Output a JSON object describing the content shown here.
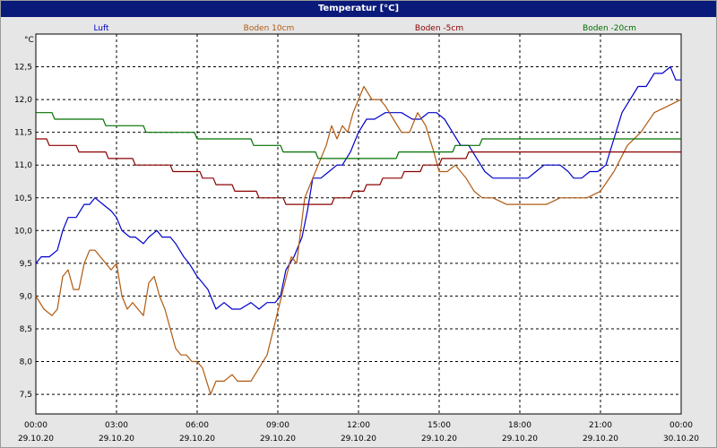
{
  "window": {
    "title": "Temperatur [°C]"
  },
  "chart_data": {
    "type": "line",
    "title": "Temperatur [°C]",
    "ylabel": "°C",
    "xlabel": "",
    "ylim": [
      7.2,
      13.0
    ],
    "y_ticks": [
      7.5,
      8.0,
      8.5,
      9.0,
      9.5,
      10.0,
      10.5,
      11.0,
      11.5,
      12.0,
      12.5
    ],
    "y_tick_labels": [
      "7,5",
      "8,0",
      "8,5",
      "9,0",
      "9,5",
      "10,0",
      "10,5",
      "11,0",
      "11,5",
      "12,0",
      "12,5"
    ],
    "xlim": [
      0,
      24
    ],
    "x_ticks": [
      0,
      3,
      6,
      9,
      12,
      15,
      18,
      21,
      24
    ],
    "x_tick_labels": [
      [
        "00:00",
        "29.10.20"
      ],
      [
        "03:00",
        "29.10.20"
      ],
      [
        "06:00",
        "29.10.20"
      ],
      [
        "09:00",
        "29.10.20"
      ],
      [
        "12:00",
        "29.10.20"
      ],
      [
        "15:00",
        "29.10.20"
      ],
      [
        "18:00",
        "29.10.20"
      ],
      [
        "21:00",
        "29.10.20"
      ],
      [
        "00:00",
        "30.10.20"
      ]
    ],
    "grid": true,
    "legend_position": "top",
    "series": [
      {
        "name": "Luft",
        "color": "#0000cc",
        "x": [
          0,
          0.2,
          0.5,
          0.8,
          1.0,
          1.2,
          1.5,
          1.8,
          2.0,
          2.2,
          2.5,
          2.8,
          3.0,
          3.2,
          3.5,
          3.7,
          4.0,
          4.2,
          4.5,
          4.7,
          5.0,
          5.2,
          5.5,
          5.7,
          6.0,
          6.2,
          6.4,
          6.7,
          7.0,
          7.3,
          7.6,
          8.0,
          8.3,
          8.6,
          8.9,
          9.1,
          9.3,
          9.6,
          9.9,
          10.1,
          10.3,
          10.6,
          10.9,
          11.2,
          11.4,
          11.7,
          12.0,
          12.3,
          12.6,
          13.0,
          13.3,
          13.6,
          14.0,
          14.3,
          14.6,
          14.9,
          15.2,
          15.5,
          15.8,
          16.1,
          16.4,
          16.7,
          17.0,
          17.5,
          18.0,
          18.3,
          18.6,
          18.9,
          19.2,
          19.5,
          19.8,
          20.0,
          20.3,
          20.6,
          20.9,
          21.2,
          21.5,
          21.8,
          22.1,
          22.4,
          22.7,
          23.0,
          23.3,
          23.6,
          23.8,
          24.0
        ],
        "values": [
          9.5,
          9.6,
          9.6,
          9.7,
          10.0,
          10.2,
          10.2,
          10.4,
          10.4,
          10.5,
          10.4,
          10.3,
          10.2,
          10.0,
          9.9,
          9.9,
          9.8,
          9.9,
          10.0,
          9.9,
          9.9,
          9.8,
          9.6,
          9.5,
          9.3,
          9.2,
          9.1,
          8.8,
          8.9,
          8.8,
          8.8,
          8.9,
          8.8,
          8.9,
          8.9,
          9.0,
          9.4,
          9.6,
          9.9,
          10.3,
          10.8,
          10.8,
          10.9,
          11.0,
          11.0,
          11.2,
          11.5,
          11.7,
          11.7,
          11.8,
          11.8,
          11.8,
          11.7,
          11.7,
          11.8,
          11.8,
          11.7,
          11.5,
          11.3,
          11.3,
          11.1,
          10.9,
          10.8,
          10.8,
          10.8,
          10.8,
          10.9,
          11.0,
          11.0,
          11.0,
          10.9,
          10.8,
          10.8,
          10.9,
          10.9,
          11.0,
          11.4,
          11.8,
          12.0,
          12.2,
          12.2,
          12.4,
          12.4,
          12.5,
          12.3,
          12.3
        ]
      },
      {
        "name": "Boden 10cm",
        "color": "#b05a10",
        "x": [
          0,
          0.3,
          0.6,
          0.8,
          1.0,
          1.2,
          1.4,
          1.6,
          1.8,
          2.0,
          2.2,
          2.4,
          2.6,
          2.8,
          3.0,
          3.2,
          3.4,
          3.6,
          3.8,
          4.0,
          4.2,
          4.4,
          4.6,
          4.8,
          5.0,
          5.2,
          5.4,
          5.6,
          5.8,
          6.0,
          6.2,
          6.5,
          6.7,
          7.0,
          7.3,
          7.5,
          7.8,
          8.0,
          8.3,
          8.6,
          8.9,
          9.2,
          9.5,
          9.7,
          10.0,
          10.2,
          10.5,
          10.8,
          11.0,
          11.2,
          11.4,
          11.6,
          11.8,
          12.0,
          12.2,
          12.5,
          12.8,
          13.0,
          13.3,
          13.6,
          13.9,
          14.2,
          14.5,
          14.8,
          15.0,
          15.3,
          15.6,
          16.0,
          16.3,
          16.6,
          17.0,
          17.5,
          18.0,
          18.5,
          19.0,
          19.5,
          20.0,
          20.5,
          21.0,
          21.5,
          22.0,
          22.5,
          23.0,
          23.5,
          24.0
        ],
        "values": [
          9.0,
          8.8,
          8.7,
          8.8,
          9.3,
          9.4,
          9.1,
          9.1,
          9.5,
          9.7,
          9.7,
          9.6,
          9.5,
          9.4,
          9.5,
          9.0,
          8.8,
          8.9,
          8.8,
          8.7,
          9.2,
          9.3,
          9.0,
          8.8,
          8.5,
          8.2,
          8.1,
          8.1,
          8.0,
          8.0,
          7.9,
          7.5,
          7.7,
          7.7,
          7.8,
          7.7,
          7.7,
          7.7,
          7.9,
          8.1,
          8.6,
          9.1,
          9.6,
          9.5,
          10.5,
          10.7,
          11.0,
          11.3,
          11.6,
          11.4,
          11.6,
          11.5,
          11.8,
          12.0,
          12.2,
          12.0,
          12.0,
          11.9,
          11.7,
          11.5,
          11.5,
          11.8,
          11.6,
          11.2,
          10.9,
          10.9,
          11.0,
          10.8,
          10.6,
          10.5,
          10.5,
          10.4,
          10.4,
          10.4,
          10.4,
          10.5,
          10.5,
          10.5,
          10.6,
          10.9,
          11.3,
          11.5,
          11.8,
          11.9,
          12.0
        ]
      },
      {
        "name": "Boden -5cm",
        "color": "#8b0000",
        "x": [
          0,
          0.4,
          0.5,
          1.5,
          1.6,
          2.6,
          2.7,
          3.6,
          3.7,
          5.0,
          5.1,
          6.1,
          6.2,
          6.6,
          6.7,
          7.3,
          7.4,
          8.2,
          8.3,
          9.2,
          9.3,
          10.3,
          10.4,
          11.0,
          11.1,
          11.7,
          11.8,
          12.2,
          12.3,
          12.8,
          12.9,
          13.6,
          13.7,
          14.3,
          14.4,
          15.0,
          15.1,
          16.0,
          16.1,
          18.0,
          24.0
        ],
        "values": [
          11.4,
          11.4,
          11.3,
          11.3,
          11.2,
          11.2,
          11.1,
          11.1,
          11.0,
          11.0,
          10.9,
          10.9,
          10.8,
          10.8,
          10.7,
          10.7,
          10.6,
          10.6,
          10.5,
          10.5,
          10.4,
          10.4,
          10.4,
          10.4,
          10.5,
          10.5,
          10.6,
          10.6,
          10.7,
          10.7,
          10.8,
          10.8,
          10.9,
          10.9,
          11.0,
          11.0,
          11.1,
          11.1,
          11.2,
          11.2,
          11.2
        ]
      },
      {
        "name": "Boden -20cm",
        "color": "#007000",
        "x": [
          0,
          0.6,
          0.7,
          2.5,
          2.6,
          4.0,
          4.1,
          5.9,
          6.0,
          8.0,
          8.1,
          9.1,
          9.2,
          10.4,
          10.5,
          13.4,
          13.5,
          15.5,
          15.6,
          16.5,
          16.6,
          24.0
        ],
        "values": [
          11.8,
          11.8,
          11.7,
          11.7,
          11.6,
          11.6,
          11.5,
          11.5,
          11.4,
          11.4,
          11.3,
          11.3,
          11.2,
          11.2,
          11.1,
          11.1,
          11.2,
          11.2,
          11.3,
          11.3,
          11.4,
          11.4
        ]
      }
    ]
  }
}
